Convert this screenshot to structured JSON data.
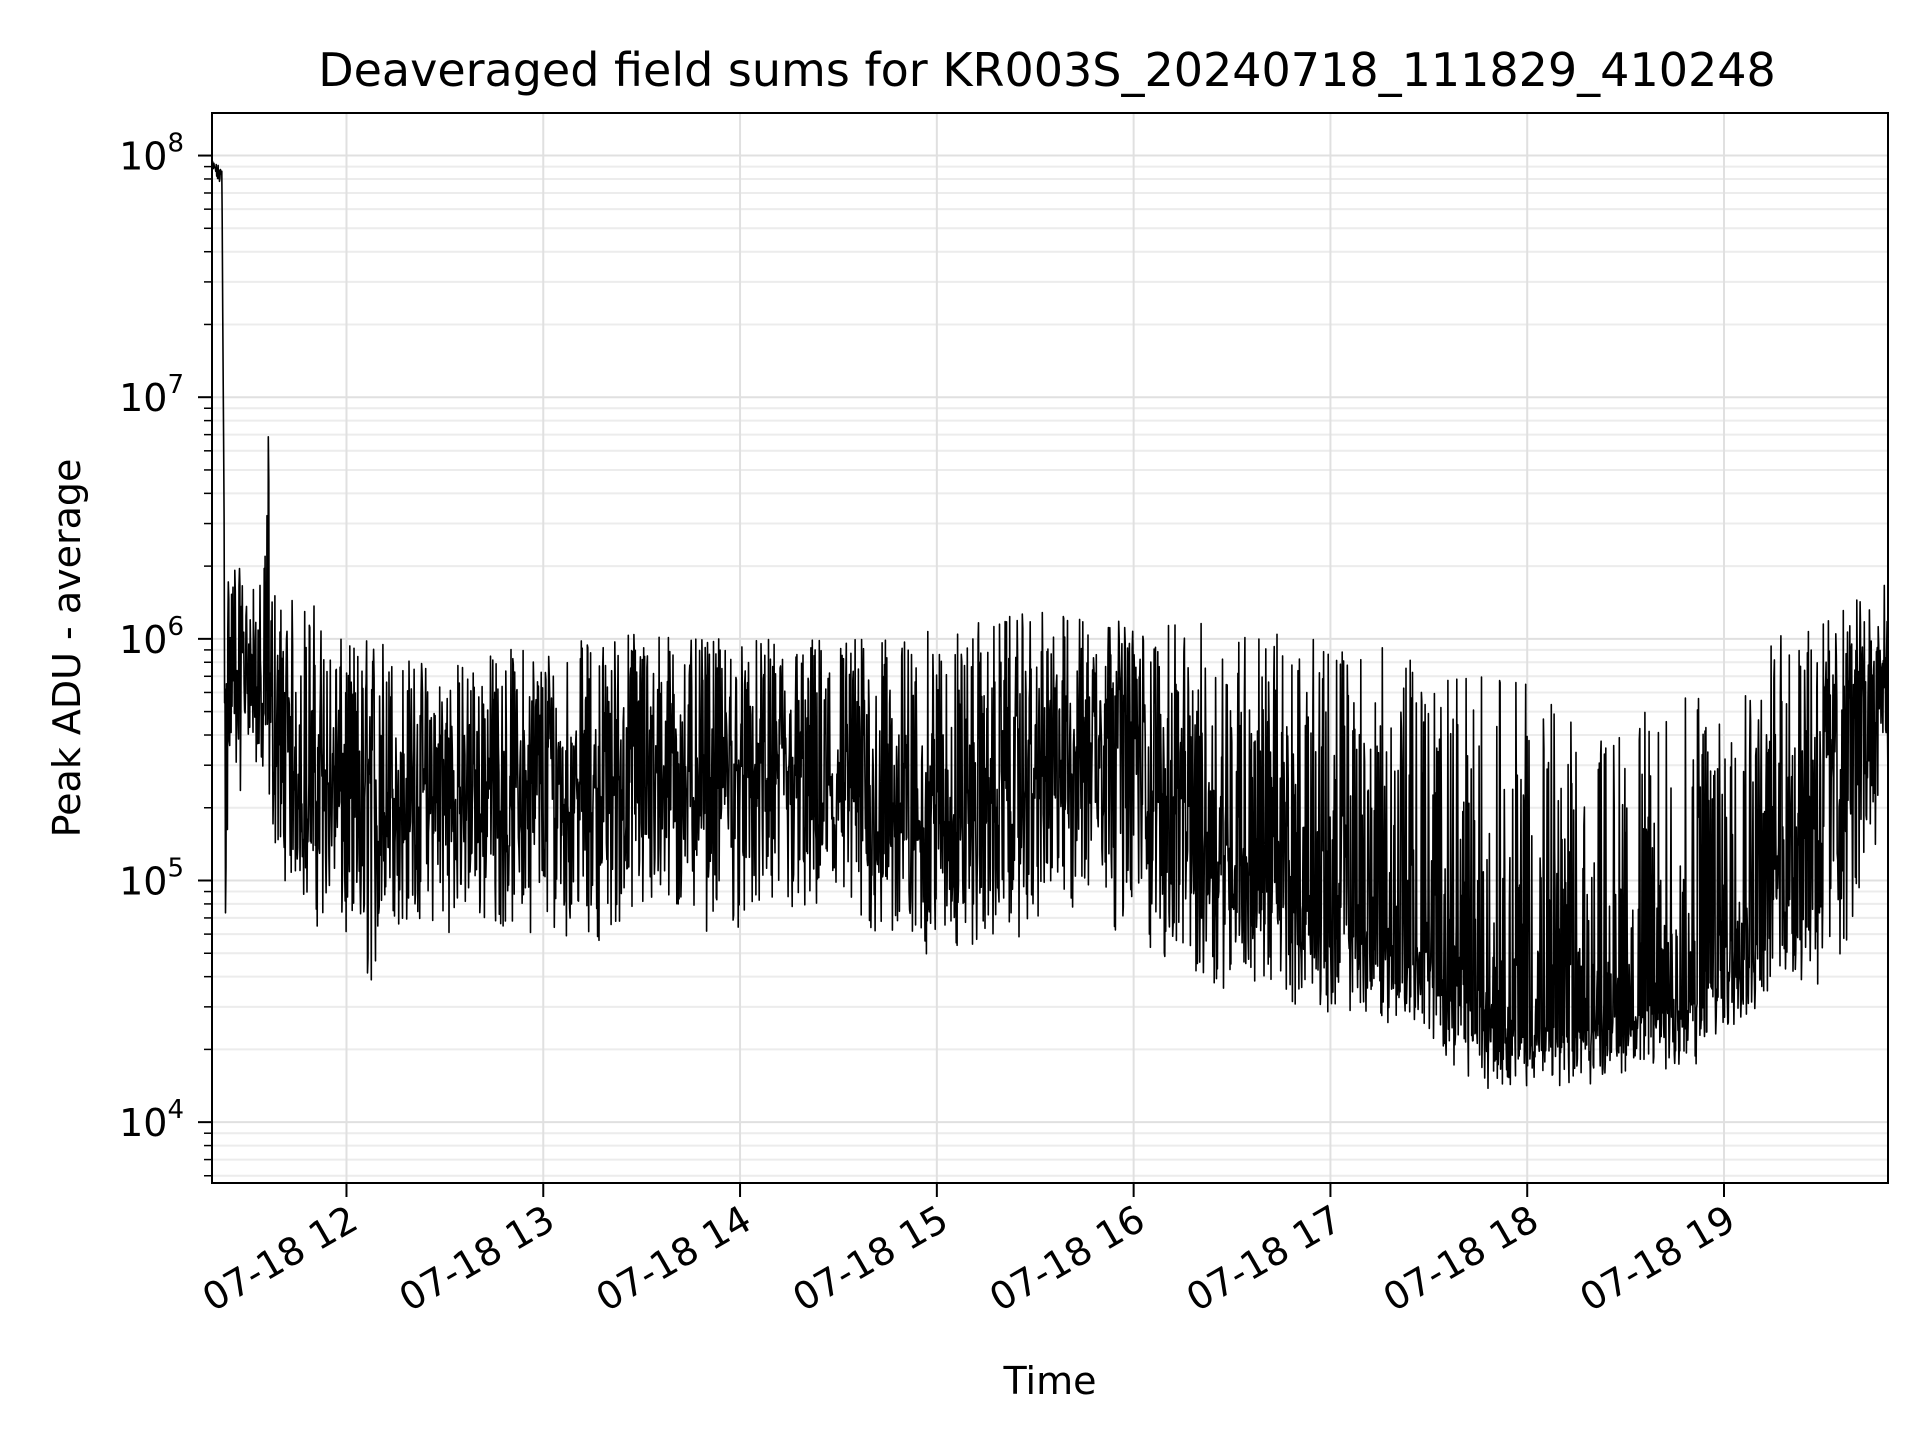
{
  "chart_data": {
    "type": "line",
    "title": "Deaveraged field sums for KR003S_20240718_111829_410248",
    "xlabel": "Time",
    "ylabel": "Peak ADU - average",
    "yscale": "log",
    "ylim": [
      5600,
      150000000
    ],
    "xlim": [
      "2024-07-18 11:19",
      "2024-07-18 19:50"
    ],
    "grid": true,
    "grid_minor": true,
    "x_ticks": [
      {
        "value": "2024-07-18 12:00",
        "label": "07-18 12"
      },
      {
        "value": "2024-07-18 13:00",
        "label": "07-18 13"
      },
      {
        "value": "2024-07-18 14:00",
        "label": "07-18 14"
      },
      {
        "value": "2024-07-18 15:00",
        "label": "07-18 15"
      },
      {
        "value": "2024-07-18 16:00",
        "label": "07-18 16"
      },
      {
        "value": "2024-07-18 17:00",
        "label": "07-18 17"
      },
      {
        "value": "2024-07-18 18:00",
        "label": "07-18 18"
      },
      {
        "value": "2024-07-18 19:00",
        "label": "07-18 19"
      }
    ],
    "y_ticks": [
      {
        "value": 10000,
        "base": "10",
        "exp": "4"
      },
      {
        "value": 100000,
        "base": "10",
        "exp": "5"
      },
      {
        "value": 1000000,
        "base": "10",
        "exp": "6"
      },
      {
        "value": 10000000,
        "base": "10",
        "exp": "7"
      },
      {
        "value": 100000000,
        "base": "10",
        "exp": "8"
      }
    ],
    "series": [
      {
        "color": "#000000",
        "x": [
          "2024-07-18 11:19",
          "2024-07-18 11:22",
          "2024-07-18 11:23",
          "2024-07-18 11:25",
          "2024-07-18 11:30",
          "2024-07-18 11:35",
          "2024-07-18 11:36",
          "2024-07-18 11:37",
          "2024-07-18 11:40",
          "2024-07-18 11:45",
          "2024-07-18 11:50",
          "2024-07-18 11:55",
          "2024-07-18 12:05",
          "2024-07-18 12:09",
          "2024-07-18 12:15",
          "2024-07-18 12:30",
          "2024-07-18 12:45",
          "2024-07-18 13:00",
          "2024-07-18 13:15",
          "2024-07-18 13:30",
          "2024-07-18 13:45",
          "2024-07-18 14:00",
          "2024-07-18 14:15",
          "2024-07-18 14:30",
          "2024-07-18 14:45",
          "2024-07-18 15:00",
          "2024-07-18 15:15",
          "2024-07-18 15:30",
          "2024-07-18 15:45",
          "2024-07-18 15:55",
          "2024-07-18 16:05",
          "2024-07-18 16:20",
          "2024-07-18 16:35",
          "2024-07-18 16:50",
          "2024-07-18 17:05",
          "2024-07-18 17:20",
          "2024-07-18 17:35",
          "2024-07-18 17:50",
          "2024-07-18 18:05",
          "2024-07-18 18:20",
          "2024-07-18 18:35",
          "2024-07-18 18:50",
          "2024-07-18 19:05",
          "2024-07-18 19:20",
          "2024-07-18 19:35",
          "2024-07-18 19:50"
        ],
        "low": [
          80000000,
          70000000,
          60000,
          120000,
          400000,
          150000,
          200000,
          150000,
          100000,
          90000,
          60000,
          70000,
          25000,
          40000,
          60000,
          60000,
          60000,
          60000,
          55000,
          60000,
          60000,
          60000,
          60000,
          55000,
          50000,
          45000,
          50000,
          60000,
          60000,
          60000,
          45000,
          35000,
          35000,
          30000,
          27000,
          25000,
          18000,
          13000,
          14000,
          14000,
          17000,
          15000,
          25000,
          25000,
          35000,
          200000
        ],
        "high": [
          95000000,
          90000000,
          1800000,
          2500000,
          1500000,
          2000000,
          11000000,
          2000000,
          1500000,
          1500000,
          1500000,
          1000000,
          1000000,
          1200000,
          900000,
          800000,
          900000,
          1000000,
          1000000,
          1200000,
          1000000,
          1000000,
          1000000,
          1100000,
          1000000,
          1100000,
          1200000,
          1300000,
          1300000,
          1200000,
          1100000,
          1200000,
          1200000,
          1000000,
          1000000,
          900000,
          700000,
          800000,
          600000,
          400000,
          500000,
          600000,
          900000,
          1100000,
          1300000,
          1800000
        ],
        "center": [
          90000000,
          85000000,
          600000,
          900000,
          800000,
          500000,
          600000,
          500000,
          350000,
          250000,
          250000,
          250000,
          200000,
          200000,
          220000,
          230000,
          240000,
          250000,
          250000,
          280000,
          280000,
          280000,
          260000,
          230000,
          200000,
          180000,
          200000,
          250000,
          400000,
          600000,
          250000,
          160000,
          120000,
          90000,
          70000,
          55000,
          40000,
          28000,
          25000,
          25000,
          28000,
          30000,
          70000,
          150000,
          400000,
          800000
        ]
      }
    ]
  }
}
